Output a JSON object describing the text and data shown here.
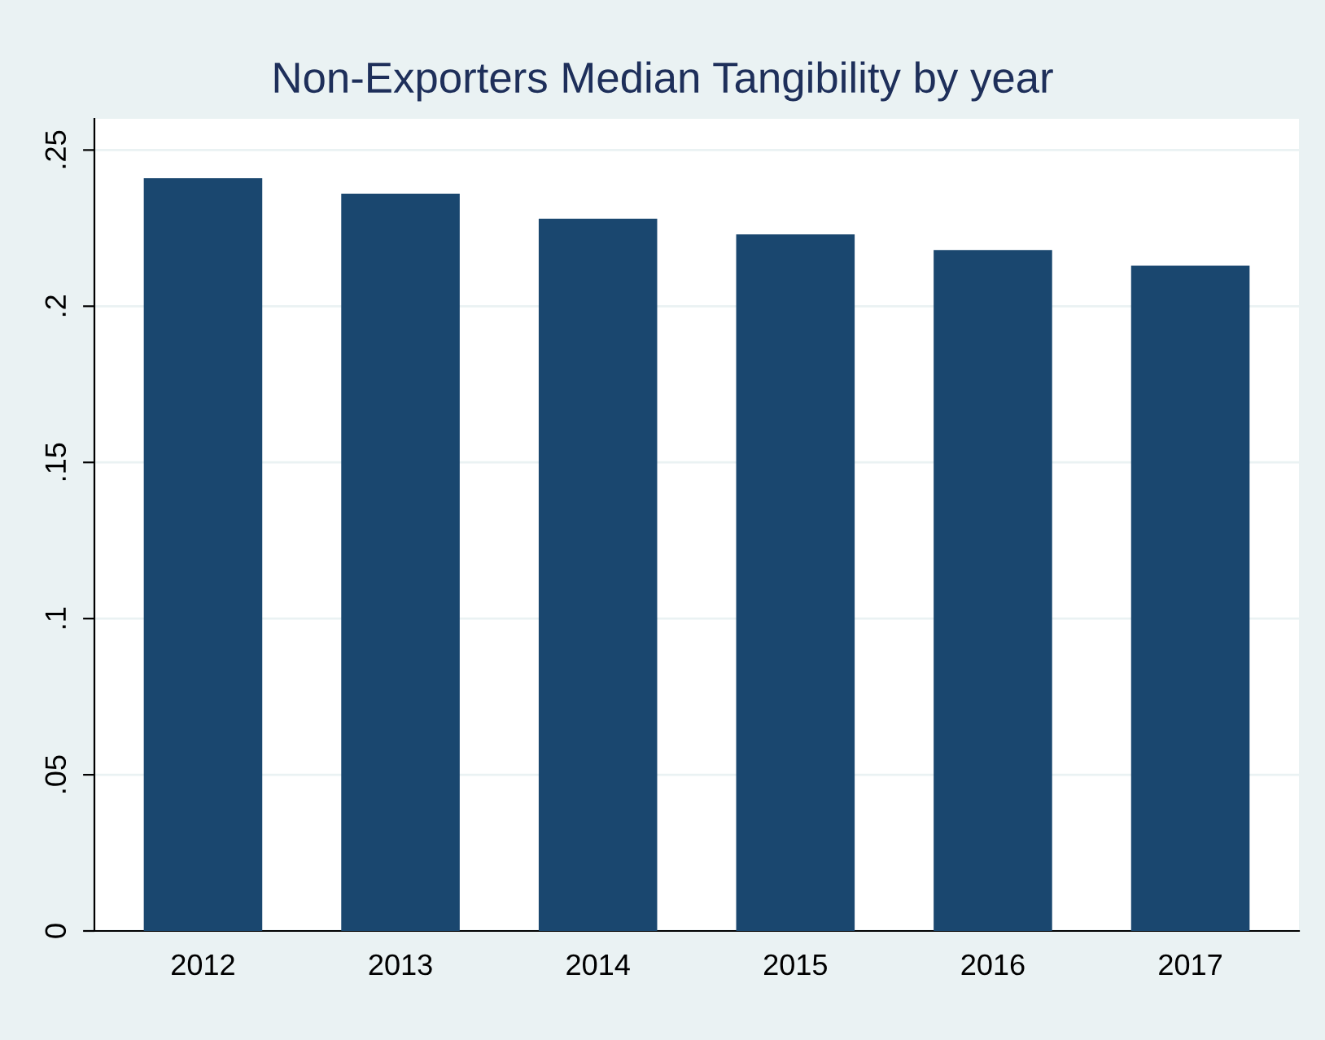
{
  "chart_data": {
    "type": "bar",
    "title": "Non-Exporters Median Tangibility by year",
    "categories": [
      "2012",
      "2013",
      "2014",
      "2015",
      "2016",
      "2017"
    ],
    "values": [
      0.241,
      0.236,
      0.228,
      0.223,
      0.218,
      0.213
    ],
    "color": "#1a476f",
    "ylim": [
      0,
      0.26
    ],
    "yticks": [
      {
        "value": 0,
        "label": "0"
      },
      {
        "value": 0.05,
        "label": ".05"
      },
      {
        "value": 0.1,
        "label": ".1"
      },
      {
        "value": 0.15,
        "label": ".15"
      },
      {
        "value": 0.2,
        "label": ".2"
      },
      {
        "value": 0.25,
        "label": ".25"
      }
    ],
    "grid": "y"
  }
}
